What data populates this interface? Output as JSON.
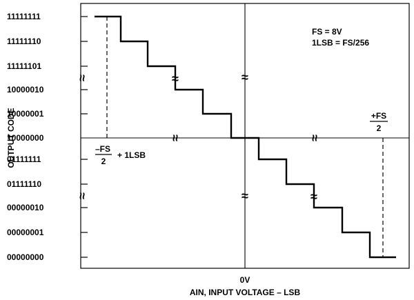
{
  "title_block": {
    "fs_line": "FS = 8V",
    "lsb_line": "1LSB = FS/256"
  },
  "axes": {
    "x_label": "AIN, INPUT VOLTAGE – LSB",
    "y_label": "OUTPUT CODE",
    "origin_label": "0V"
  },
  "y_codes": [
    "11111111",
    "11111110",
    "11111101",
    "10000010",
    "10000001",
    "10000000",
    "01111111",
    "01111110",
    "00000010",
    "00000001",
    "00000000"
  ],
  "annotations": {
    "neg_fs_numerator": "–FS",
    "neg_fs_denominator": "2",
    "neg_fs_suffix": "+ 1LSB",
    "pos_fs_numerator": "+FS",
    "pos_fs_denominator": "2"
  },
  "break_symbol": "≈",
  "colors": {
    "line": "#000000",
    "background": "#ffffff"
  }
}
